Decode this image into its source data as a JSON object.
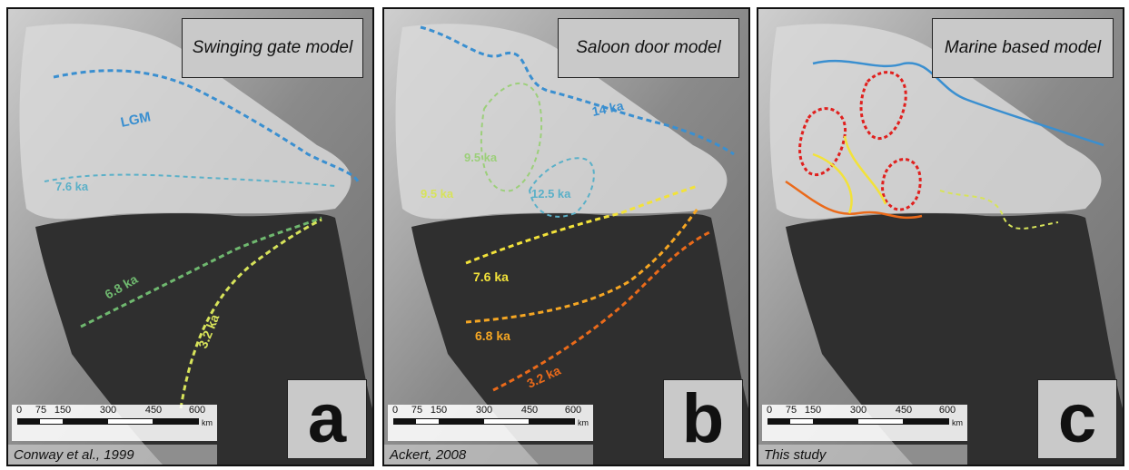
{
  "panels": [
    {
      "title": "Swinging gate model",
      "letter": "a",
      "citation": "Conway et al., 1999",
      "labels": [
        "LGM",
        "7.6 ka",
        "6.8 ka",
        "3.2 ka"
      ]
    },
    {
      "title": "Saloon door model",
      "letter": "b",
      "citation": "Ackert, 2008",
      "labels": [
        "14 ka",
        "9.5 ka",
        "9.5 ka",
        "12.5 ka",
        "7.6 ka",
        "6.8 ka",
        "3.2 ka"
      ]
    },
    {
      "title": "Marine based model",
      "letter": "c",
      "citation": "This study",
      "labels": []
    }
  ],
  "scale": {
    "ticks": [
      "0",
      "75",
      "150",
      "300",
      "450",
      "600"
    ],
    "unit": "km"
  },
  "colors": {
    "lgm": "#3a8fd0",
    "ka14": "#3a8fd0",
    "ka12_5": "#5ab0c8",
    "ka9_5": "#9ccf7a",
    "ka7_6": "#f2e23a",
    "ka6_8": "#f5a623",
    "ka3_2": "#ea6a1a",
    "ka6_8_a": "#6fb86f",
    "ka3_2_a": "#d7e35a",
    "red": "#e0201e",
    "ice_shelf": "#2f2f2f"
  }
}
